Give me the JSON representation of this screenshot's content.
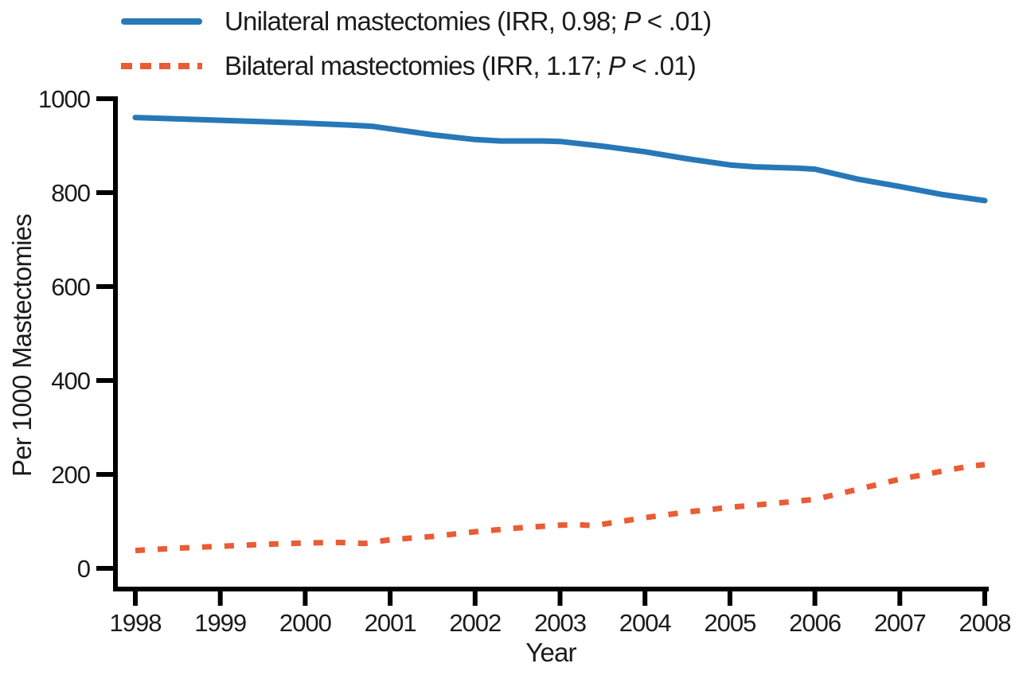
{
  "figure": {
    "background": "#ffffff",
    "text_color": "#1b1b1b"
  },
  "legend": {
    "position": "top-left",
    "items": [
      {
        "series": "unilateral",
        "pre": "Unilateral mastectomies (IRR, 0.98; ",
        "p": "P",
        "post": " < .01)",
        "color": "#2878B8",
        "style": "solid"
      },
      {
        "series": "bilateral",
        "pre": "Bilateral mastectomies (IRR, 1.17; ",
        "p": "P",
        "post": " < .01)",
        "color": "#E95C35",
        "style": "dashed"
      }
    ]
  },
  "chart_data": {
    "type": "line",
    "title": "",
    "xlabel": "Year",
    "ylabel": "Per 1000 Mastectomies",
    "xlim": [
      1998,
      2008
    ],
    "ylim": [
      0,
      1000
    ],
    "x_ticks": [
      1998,
      1999,
      2000,
      2001,
      2002,
      2003,
      2004,
      2005,
      2006,
      2007,
      2008
    ],
    "y_ticks": [
      0,
      200,
      400,
      600,
      800,
      1000
    ],
    "grid": false,
    "axis_color": "#000000",
    "legend_position": "top-left",
    "series": [
      {
        "id": "unilateral",
        "name": "Unilateral mastectomies (IRR, 0.98; P < .01)",
        "color": "#2878B8",
        "style": "solid",
        "x": [
          1998,
          1998.5,
          1999,
          1999.5,
          2000,
          2000.5,
          2000.8,
          2001,
          2001.5,
          2002,
          2002.3,
          2002.8,
          2003,
          2003.5,
          2004,
          2004.5,
          2005,
          2005.3,
          2005.8,
          2006,
          2006.5,
          2007,
          2007.5,
          2008
        ],
        "y": [
          960,
          957,
          954,
          951,
          948,
          944,
          941,
          936,
          923,
          913,
          910,
          910,
          909,
          899,
          887,
          872,
          859,
          855,
          852,
          850,
          829,
          813,
          796,
          783
        ]
      },
      {
        "id": "bilateral",
        "name": "Bilateral mastectomies (IRR, 1.17; P < .01)",
        "color": "#E95C35",
        "style": "dashed",
        "x": [
          1998,
          1998.5,
          1999,
          1999.5,
          2000,
          2000.4,
          2000.7,
          2001,
          2001.5,
          2002,
          2002.5,
          2003,
          2003.2,
          2003.4,
          2004,
          2004.5,
          2005,
          2005.5,
          2006,
          2006.5,
          2007,
          2007.5,
          2007.8,
          2008
        ],
        "y": [
          38,
          43,
          47,
          51,
          54,
          55,
          53,
          61,
          68,
          78,
          86,
          92,
          93,
          91,
          108,
          120,
          130,
          138,
          147,
          168,
          190,
          207,
          217,
          221
        ]
      }
    ]
  }
}
